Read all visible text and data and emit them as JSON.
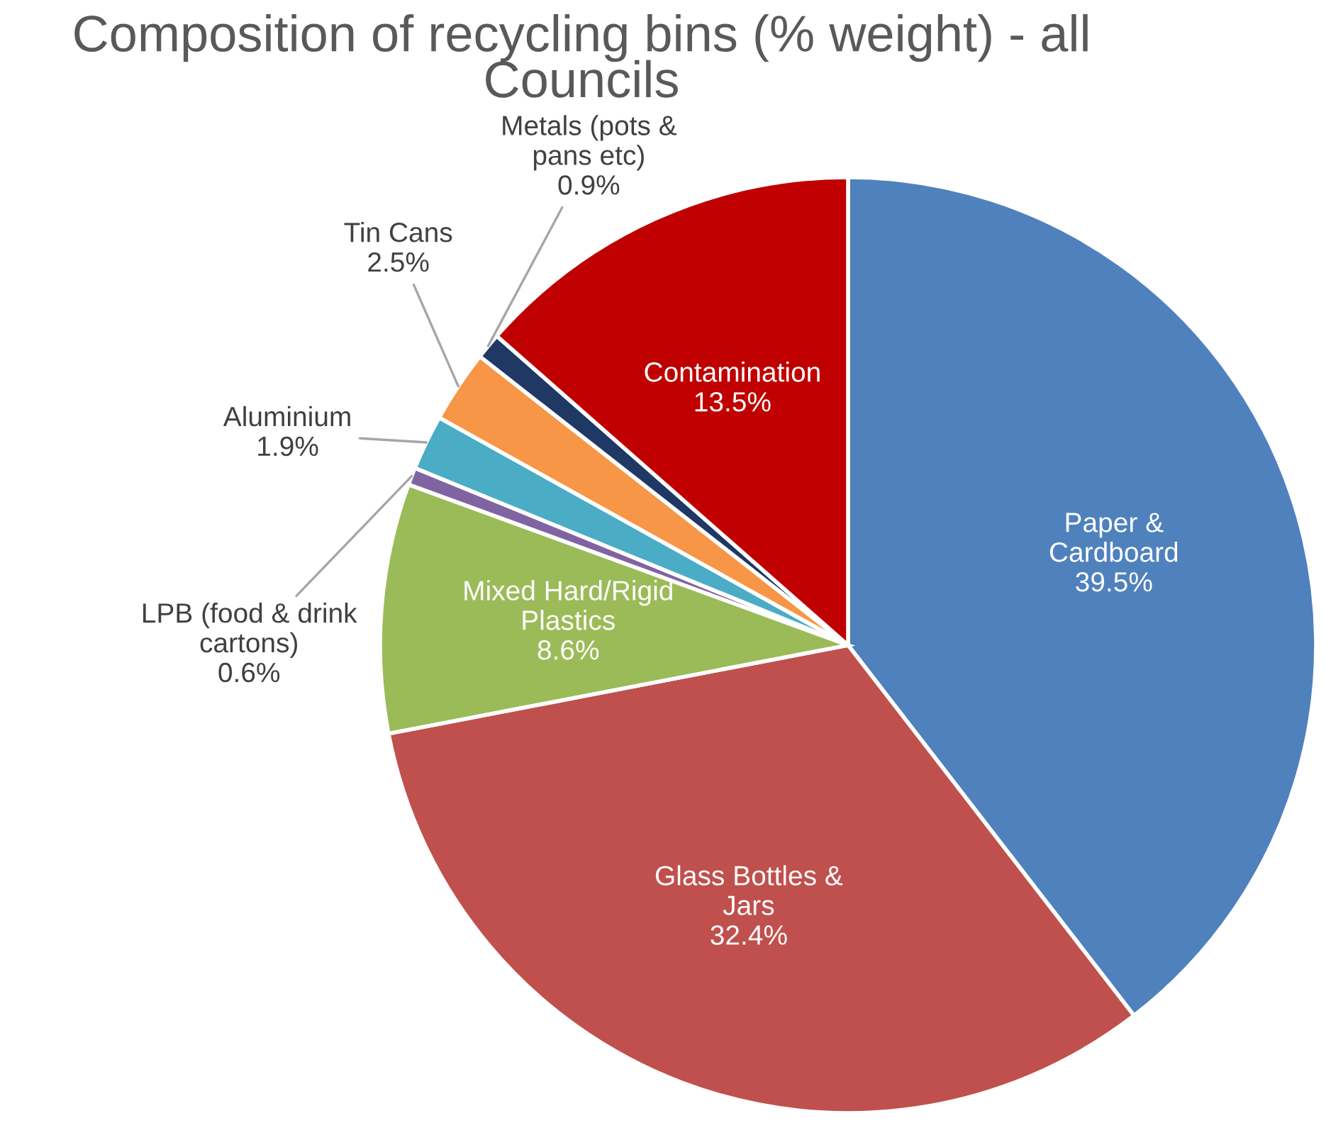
{
  "chart_data": {
    "type": "pie",
    "title": "Composition of recycling bins (% weight) - all\nCouncils",
    "categories": [
      "Paper &\nCardboard",
      "Glass Bottles &\nJars",
      "Mixed Hard/Rigid\nPlastics",
      "LPB (food & drink\ncartons)",
      "Aluminium",
      "Tin Cans",
      "Metals (pots &\npans etc)",
      "Contamination"
    ],
    "values": [
      39.5,
      32.4,
      8.6,
      0.6,
      1.9,
      2.5,
      0.9,
      13.5
    ],
    "value_labels": [
      "39.5%",
      "32.4%",
      "8.6%",
      "0.6%",
      "1.9%",
      "2.5%",
      "0.9%",
      "13.5%"
    ],
    "colors": [
      "#4f81bd",
      "#c0504d",
      "#9bbb59",
      "#8064a2",
      "#4bacc6",
      "#f79646",
      "#1f3864",
      "#c00000"
    ],
    "legend": false
  }
}
